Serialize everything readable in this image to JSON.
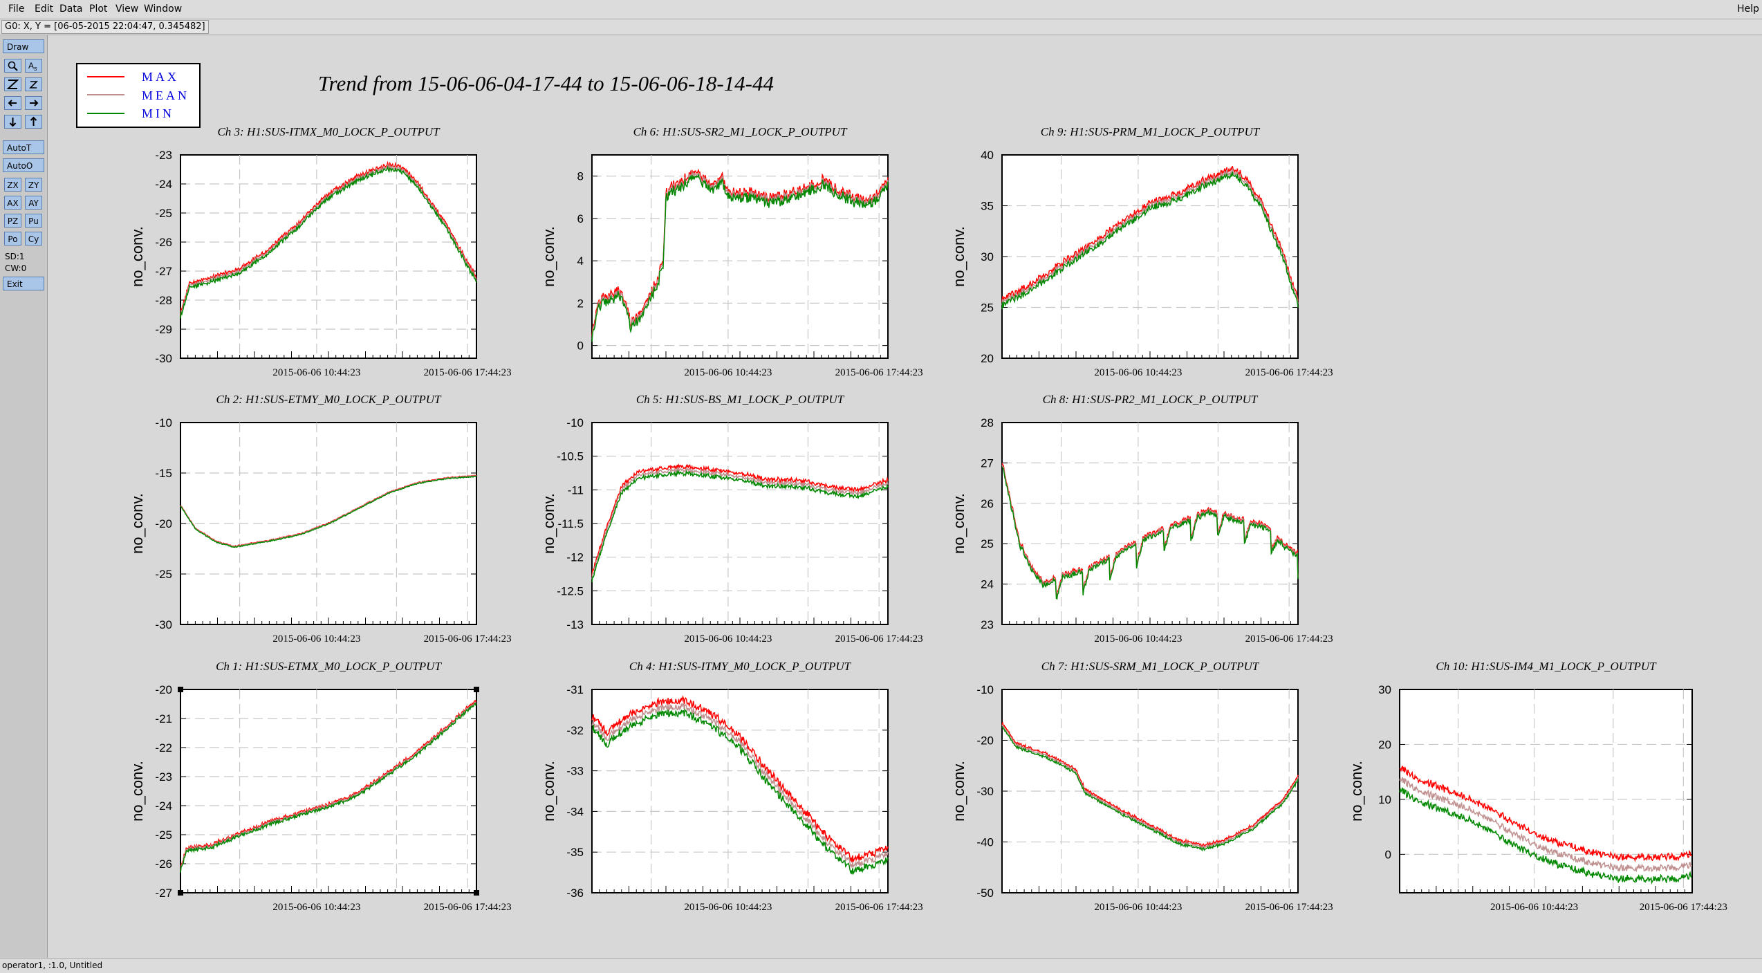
{
  "menu": {
    "left": [
      "File",
      "Edit",
      "Data",
      "Plot",
      "View",
      "Window"
    ],
    "right": "Help"
  },
  "coord_readout": "G0: X, Y = [06-05-2015 22:04:47, 0.345482]",
  "toolbar": {
    "draw": "Draw",
    "icons": [
      [
        "zoom-icon",
        "annotate-icon"
      ],
      [
        "zoom-z-icon",
        "zoom-z-small-icon"
      ],
      [
        "arrow-left-icon",
        "arrow-right-icon"
      ],
      [
        "arrow-down-icon",
        "arrow-up-icon"
      ]
    ],
    "autot": "AutoT",
    "autoo": "AutoO",
    "pairs": [
      [
        "ZX",
        "ZY"
      ],
      [
        "AX",
        "AY"
      ],
      [
        "PZ",
        "Pu"
      ],
      [
        "Po",
        "Cy"
      ]
    ],
    "sd": "SD:1",
    "cw": "CW:0",
    "exit": "Exit"
  },
  "status": "operator1, :1.0, Untitled",
  "legend": [
    "MAX",
    "MEAN",
    "MIN"
  ],
  "colors": {
    "max": "#ff0000",
    "mean": "#c09090",
    "min": "#008800",
    "legend_text": "#0000dd"
  },
  "title": "Trend from 15-06-06-04-17-44 to 15-06-06-18-14-44",
  "chart_data": [
    {
      "type": "line",
      "title": "Ch 3: H1:SUS-ITMX_M0_LOCK_P_OUTPUT",
      "ylabel": "no_conv.",
      "ylim": [
        -30,
        -23
      ],
      "yticks": [
        "-23",
        "-24",
        "-25",
        "-26",
        "-27",
        "-28",
        "-29",
        "-30"
      ],
      "xticks": [
        "2015-06-06 10:44:23",
        "2015-06-06 17:44:23"
      ],
      "shape": [
        [
          0,
          -28.5
        ],
        [
          0.03,
          -27.5
        ],
        [
          0.1,
          -27.3
        ],
        [
          0.2,
          -27.0
        ],
        [
          0.3,
          -26.3
        ],
        [
          0.4,
          -25.4
        ],
        [
          0.5,
          -24.4
        ],
        [
          0.6,
          -23.8
        ],
        [
          0.7,
          -23.4
        ],
        [
          0.75,
          -23.5
        ],
        [
          0.8,
          -24.0
        ],
        [
          0.9,
          -25.5
        ],
        [
          1.0,
          -27.3
        ]
      ],
      "noise": 0.15,
      "maxoff": 0.05,
      "minoff": 0.05
    },
    {
      "type": "line",
      "title": "Ch 6: H1:SUS-SR2_M1_LOCK_P_OUTPUT",
      "ylabel": "no_conv.",
      "ylim": [
        -0.6,
        9
      ],
      "yticks": [
        "8",
        "6",
        "4",
        "2",
        "0"
      ],
      "xticks": [
        "2015-06-06 10:44:23",
        "2015-06-06 17:44:23"
      ],
      "shape": [
        [
          0,
          0.5
        ],
        [
          0.02,
          2.0
        ],
        [
          0.1,
          2.5
        ],
        [
          0.13,
          1.0
        ],
        [
          0.17,
          1.5
        ],
        [
          0.22,
          3.0
        ],
        [
          0.24,
          3.8
        ],
        [
          0.25,
          7.0
        ],
        [
          0.27,
          7.4
        ],
        [
          0.3,
          7.5
        ],
        [
          0.34,
          8.2
        ],
        [
          0.4,
          7.5
        ],
        [
          0.44,
          7.8
        ],
        [
          0.46,
          7.1
        ],
        [
          0.55,
          7.1
        ],
        [
          0.6,
          6.8
        ],
        [
          0.7,
          7.2
        ],
        [
          0.78,
          7.7
        ],
        [
          0.85,
          7.1
        ],
        [
          0.92,
          6.7
        ],
        [
          0.96,
          7.0
        ],
        [
          1.0,
          7.7
        ]
      ],
      "noise": 0.45,
      "maxoff": 0.05,
      "minoff": 0.05
    },
    {
      "type": "line",
      "title": "Ch 9: H1:SUS-PRM_M1_LOCK_P_OUTPUT",
      "ylabel": "no_conv.",
      "ylim": [
        20,
        40
      ],
      "yticks": [
        "40",
        "35",
        "30",
        "25",
        "20"
      ],
      "xticks": [
        "2015-06-06 10:44:23",
        "2015-06-06 17:44:23"
      ],
      "shape": [
        [
          0,
          25.5
        ],
        [
          0.1,
          27.0
        ],
        [
          0.2,
          29.0
        ],
        [
          0.3,
          31.0
        ],
        [
          0.4,
          33.0
        ],
        [
          0.5,
          35.0
        ],
        [
          0.6,
          36.0
        ],
        [
          0.7,
          37.5
        ],
        [
          0.78,
          38.5
        ],
        [
          0.82,
          37.5
        ],
        [
          0.88,
          35.0
        ],
        [
          0.95,
          30.0
        ],
        [
          1.0,
          25.5
        ]
      ],
      "noise": 0.6,
      "maxoff": 0.2,
      "minoff": 0.2
    },
    {
      "type": "line",
      "title": "Ch 2: H1:SUS-ETMY_M0_LOCK_P_OUTPUT",
      "ylabel": "no_conv.",
      "ylim": [
        -30,
        -10
      ],
      "yticks": [
        "-10",
        "-15",
        "-20",
        "-25",
        "-30"
      ],
      "xticks": [
        "2015-06-06 10:44:23",
        "2015-06-06 17:44:23"
      ],
      "shape": [
        [
          0,
          -18.2
        ],
        [
          0.05,
          -20.5
        ],
        [
          0.12,
          -21.8
        ],
        [
          0.18,
          -22.3
        ],
        [
          0.3,
          -21.7
        ],
        [
          0.4,
          -21.1
        ],
        [
          0.5,
          -20.0
        ],
        [
          0.6,
          -18.5
        ],
        [
          0.7,
          -17.0
        ],
        [
          0.8,
          -16.0
        ],
        [
          0.9,
          -15.5
        ],
        [
          1.0,
          -15.3
        ]
      ],
      "noise": 0.1,
      "maxoff": 0.03,
      "minoff": 0.03
    },
    {
      "type": "line",
      "title": "Ch 5: H1:SUS-BS_M1_LOCK_P_OUTPUT",
      "ylabel": "no_conv.",
      "ylim": [
        -13,
        -10
      ],
      "yticks": [
        "-10",
        "-10.5",
        "-11",
        "-11.5",
        "-12",
        "-12.5",
        "-13"
      ],
      "xticks": [
        "2015-06-06 10:44:23",
        "2015-06-06 17:44:23"
      ],
      "shape": [
        [
          0,
          -12.3
        ],
        [
          0.05,
          -11.6
        ],
        [
          0.1,
          -11.0
        ],
        [
          0.15,
          -10.8
        ],
        [
          0.2,
          -10.75
        ],
        [
          0.3,
          -10.7
        ],
        [
          0.4,
          -10.75
        ],
        [
          0.5,
          -10.8
        ],
        [
          0.6,
          -10.9
        ],
        [
          0.7,
          -10.9
        ],
        [
          0.8,
          -11.0
        ],
        [
          0.9,
          -11.05
        ],
        [
          1.0,
          -10.9
        ]
      ],
      "noise": 0.06,
      "maxoff": 0.04,
      "minoff": 0.04
    },
    {
      "type": "line",
      "title": "Ch 8: H1:SUS-PR2_M1_LOCK_P_OUTPUT",
      "ylabel": "no_conv.",
      "ylim": [
        23,
        28
      ],
      "yticks": [
        "28",
        "27",
        "26",
        "25",
        "24",
        "23"
      ],
      "xticks": [
        "2015-06-06 10:44:23",
        "2015-06-06 17:44:23"
      ],
      "shape": [
        [
          0,
          27.0
        ],
        [
          0.03,
          26.0
        ],
        [
          0.06,
          25.0
        ],
        [
          0.1,
          24.4
        ],
        [
          0.14,
          24.0
        ],
        [
          0.2,
          24.2
        ],
        [
          0.3,
          24.4
        ],
        [
          0.4,
          24.8
        ],
        [
          0.5,
          25.2
        ],
        [
          0.6,
          25.5
        ],
        [
          0.7,
          25.8
        ],
        [
          0.8,
          25.6
        ],
        [
          0.9,
          25.4
        ],
        [
          0.95,
          25.0
        ],
        [
          1.0,
          24.7
        ]
      ],
      "noise": 0.12,
      "saw": [
        0.55,
        24
      ],
      "maxoff": 0.02,
      "minoff": 0.02
    },
    {
      "type": "line",
      "title": "Ch 1: H1:SUS-ETMX_M0_LOCK_P_OUTPUT",
      "ylabel": "no_conv.",
      "ylim": [
        -27,
        -20
      ],
      "yticks": [
        "-20",
        "-21",
        "-22",
        "-23",
        "-24",
        "-25",
        "-26",
        "-27"
      ],
      "xticks": [
        "2015-06-06 10:44:23",
        "2015-06-06 17:44:23"
      ],
      "shape": [
        [
          0,
          -26.2
        ],
        [
          0.02,
          -25.5
        ],
        [
          0.1,
          -25.4
        ],
        [
          0.2,
          -25.0
        ],
        [
          0.3,
          -24.6
        ],
        [
          0.4,
          -24.3
        ],
        [
          0.5,
          -24.0
        ],
        [
          0.6,
          -23.6
        ],
        [
          0.7,
          -22.9
        ],
        [
          0.8,
          -22.2
        ],
        [
          0.9,
          -21.3
        ],
        [
          1.0,
          -20.4
        ]
      ],
      "noise": 0.12,
      "maxoff": 0.03,
      "minoff": 0.03
    },
    {
      "type": "line",
      "title": "Ch 4: H1:SUS-ITMY_M0_LOCK_P_OUTPUT",
      "ylabel": "no_conv.",
      "ylim": [
        -36,
        -31
      ],
      "yticks": [
        "-31",
        "-32",
        "-33",
        "-34",
        "-35",
        "-36"
      ],
      "xticks": [
        "2015-06-06 10:44:23",
        "2015-06-06 17:44:23"
      ],
      "shape": [
        [
          0,
          -31.8
        ],
        [
          0.05,
          -32.2
        ],
        [
          0.12,
          -31.8
        ],
        [
          0.2,
          -31.5
        ],
        [
          0.3,
          -31.4
        ],
        [
          0.4,
          -31.7
        ],
        [
          0.5,
          -32.3
        ],
        [
          0.6,
          -33.2
        ],
        [
          0.7,
          -34.0
        ],
        [
          0.8,
          -34.8
        ],
        [
          0.88,
          -35.3
        ],
        [
          0.95,
          -35.2
        ],
        [
          1.0,
          -35.0
        ]
      ],
      "noise": 0.18,
      "maxoff": 0.12,
      "minoff": 0.12
    },
    {
      "type": "line",
      "title": "Ch 7: H1:SUS-SRM_M1_LOCK_P_OUTPUT",
      "ylabel": "no_conv.",
      "ylim": [
        -50,
        -10
      ],
      "yticks": [
        "-10",
        "-20",
        "-30",
        "-40",
        "-50"
      ],
      "xticks": [
        "2015-06-06 10:44:23",
        "2015-06-06 17:44:23"
      ],
      "shape": [
        [
          0,
          -17.0
        ],
        [
          0.05,
          -21.0
        ],
        [
          0.15,
          -23.0
        ],
        [
          0.25,
          -26.0
        ],
        [
          0.28,
          -30.0
        ],
        [
          0.4,
          -34.0
        ],
        [
          0.5,
          -37.0
        ],
        [
          0.6,
          -40.0
        ],
        [
          0.68,
          -41.0
        ],
        [
          0.75,
          -40.0
        ],
        [
          0.85,
          -37.0
        ],
        [
          0.95,
          -32.0
        ],
        [
          1.0,
          -27.5
        ]
      ],
      "noise": 0.5,
      "maxoff": 0.3,
      "minoff": 0.3
    },
    {
      "type": "line",
      "title": "Ch 10: H1:SUS-IM4_M1_LOCK_P_OUTPUT",
      "ylabel": "no_conv.",
      "ylim": [
        -7,
        30
      ],
      "yticks": [
        "30",
        "20",
        "10",
        "0"
      ],
      "xticks": [
        "2015-06-06 10:44:23",
        "2015-06-06 17:44:23"
      ],
      "shape": [
        [
          0,
          14.0
        ],
        [
          0.05,
          12.0
        ],
        [
          0.15,
          10.0
        ],
        [
          0.25,
          8.0
        ],
        [
          0.35,
          5.0
        ],
        [
          0.45,
          2.0
        ],
        [
          0.55,
          0.0
        ],
        [
          0.65,
          -1.5
        ],
        [
          0.75,
          -2.5
        ],
        [
          0.85,
          -2.5
        ],
        [
          0.95,
          -2.5
        ],
        [
          1.0,
          -2.0
        ]
      ],
      "noise": 1.2,
      "maxoff": 1.8,
      "minoff": 1.8
    }
  ]
}
